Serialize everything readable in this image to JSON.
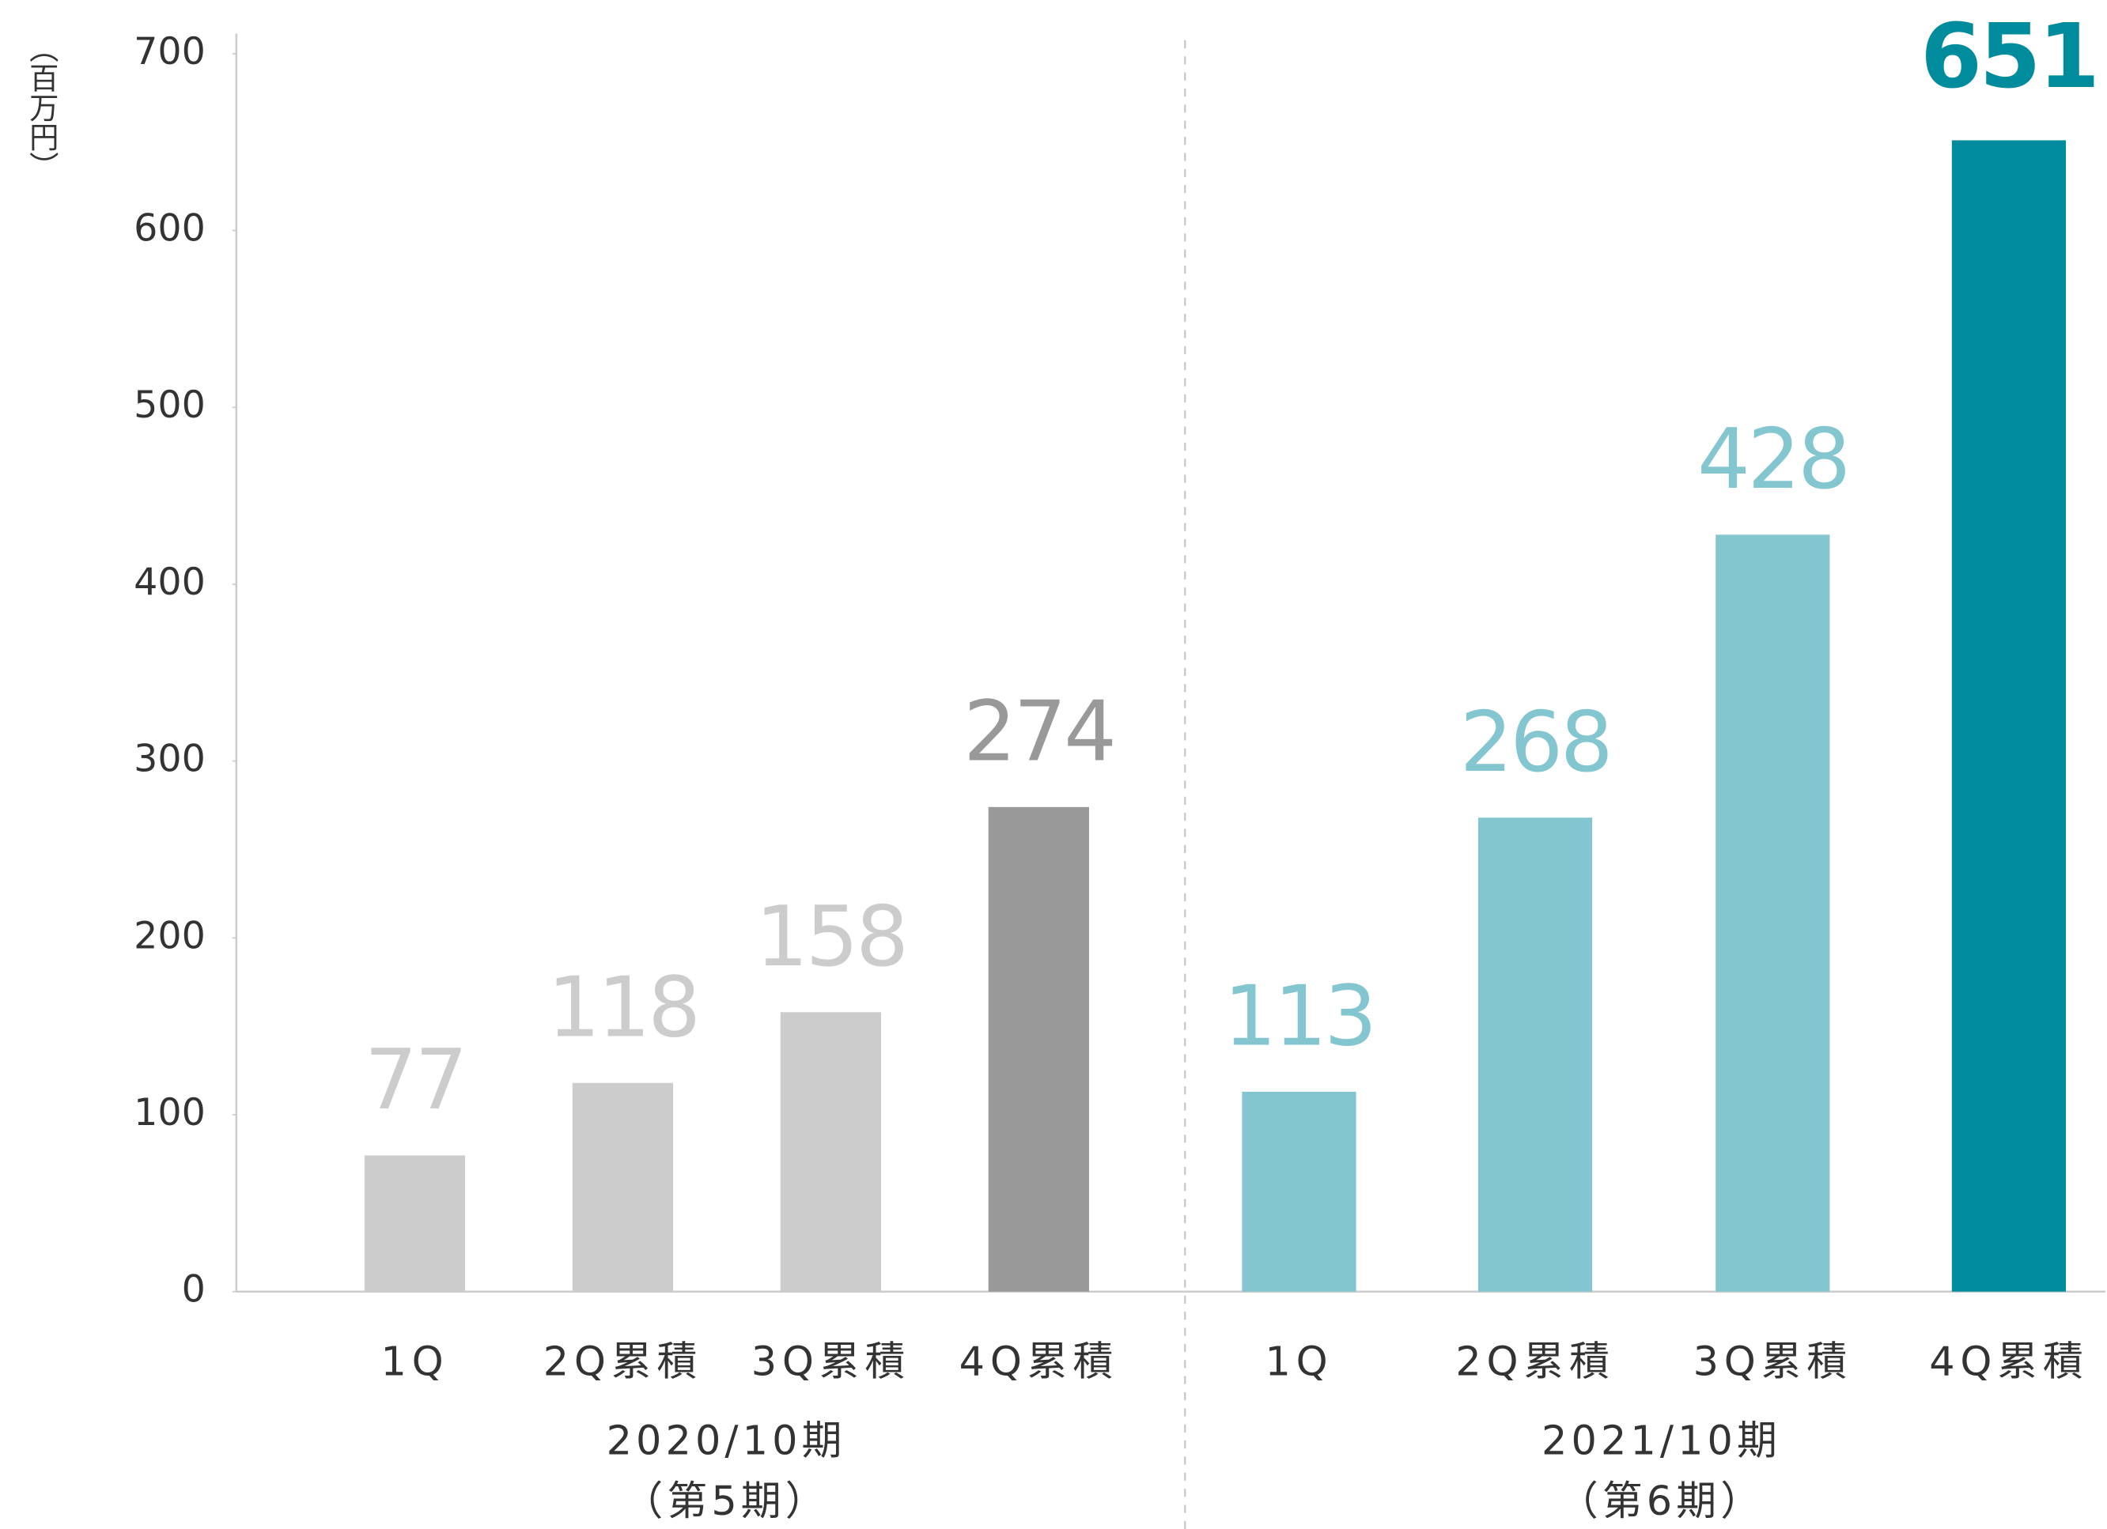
{
  "chart_data": {
    "type": "bar",
    "y_label": "（百万円）",
    "categories": [
      "1Q",
      "2Q累積",
      "3Q累積",
      "4Q累積",
      "1Q",
      "2Q累積",
      "3Q累積",
      "4Q累積"
    ],
    "values": [
      77,
      118,
      158,
      274,
      113,
      268,
      428,
      651
    ],
    "colors": [
      "#cccccc",
      "#cccccc",
      "#cccccc",
      "#999999",
      "#84c6cf",
      "#84c6cf",
      "#84c6cf",
      "#008c9c"
    ],
    "groups": [
      {
        "label": "2020/10期",
        "sublabel": "（第5期）"
      },
      {
        "label": "2021/10期",
        "sublabel": "（第6期）"
      }
    ],
    "ylim": [
      0,
      700
    ],
    "yticks": [
      0,
      100,
      200,
      300,
      400,
      500,
      600,
      700
    ]
  }
}
